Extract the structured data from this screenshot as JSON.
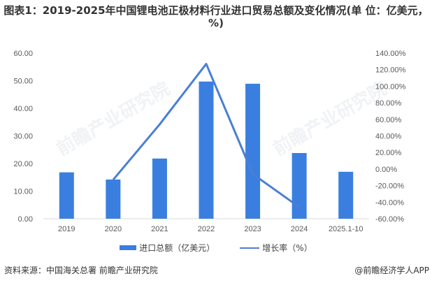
{
  "title": "图表1：2019-2025年中国锂电池正极材料行业进口贸易总额及变化情况(单 位：亿美元，%)",
  "legend": {
    "bar_label": "进口总额（亿美元）",
    "line_label": "增长率（%）"
  },
  "footer": {
    "source": "资料来源：中国海关总署 前瞻产业研究院",
    "credit": "@前瞻经济学人APP"
  },
  "watermark": "前瞻产业研究院",
  "colors": {
    "bar": "#3a7fe0",
    "line": "#4a7fd4",
    "axis": "#d9d9d9",
    "text": "#595959"
  },
  "chart_data": {
    "type": "bar+line",
    "title": "图表1：2019-2025年中国锂电池正极材料行业进口贸易总额及变化情况(单位：亿美元，%)",
    "categories": [
      "2019",
      "2020",
      "2021",
      "2022",
      "2023",
      "2024",
      "2025.1-10"
    ],
    "series": [
      {
        "name": "进口总额（亿美元）",
        "type": "bar",
        "axis": "left",
        "values": [
          16.8,
          14.2,
          21.8,
          49.7,
          48.9,
          23.8,
          17.0
        ]
      },
      {
        "name": "增长率（%）",
        "type": "line",
        "axis": "right",
        "values": [
          null,
          -13.0,
          54.0,
          127.0,
          -6.0,
          -46.0,
          null
        ]
      }
    ],
    "left_axis": {
      "ylim": [
        0,
        60
      ],
      "ticks": [
        "0.00",
        "10.00",
        "20.00",
        "30.00",
        "40.00",
        "50.00",
        "60.00"
      ]
    },
    "right_axis": {
      "ylim": [
        -60,
        140
      ],
      "ticks": [
        "-60.00%",
        "-40.00%",
        "-20.00%",
        "0.00%",
        "20.00%",
        "40.00%",
        "60.00%",
        "80.00%",
        "100.00%",
        "120.00%",
        "140.00%"
      ]
    },
    "xlabel": "",
    "ylabel": "",
    "grid": false,
    "legend_position": "bottom"
  }
}
